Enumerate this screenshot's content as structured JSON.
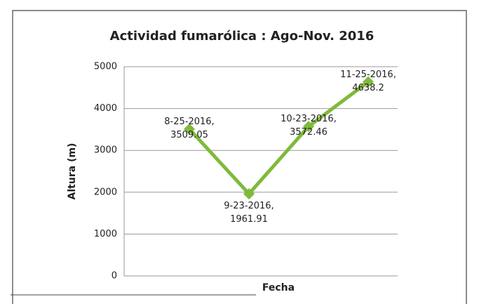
{
  "chart_data": {
    "type": "line",
    "title": "Actividad fumarólica : Ago-Nov. 2016",
    "x_label": "Fecha",
    "y_label": "Altura (m)",
    "values": [
      3509.05,
      1961.91,
      3572.46,
      4638.2
    ],
    "value_labels": [
      "8-25-2016,\n3509.05",
      "9-23-2016,\n1961.91",
      "10-23-2016,\n3572.46",
      "11-25-2016,\n4638.2"
    ],
    "color": "#7fba3a",
    "ylim": [
      0,
      5000
    ],
    "yticks": [
      0,
      1000,
      2000,
      3000,
      4000,
      5000
    ],
    "grid": true
  }
}
